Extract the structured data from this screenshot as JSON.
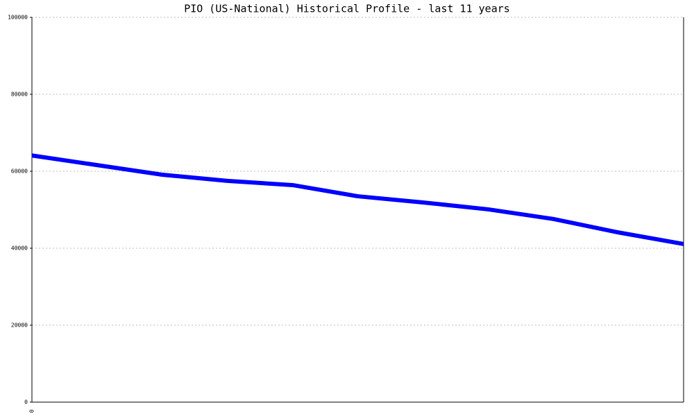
{
  "chart_data": {
    "type": "line",
    "title": "PIO (US-National) Historical Profile - last 11 years",
    "categories": [
      "0",
      null,
      null,
      null,
      null,
      null,
      null,
      null,
      null,
      null,
      null
    ],
    "series": [
      {
        "name": "PIO",
        "color": "#0000ff",
        "values": [
          64100,
          61600,
          59100,
          57500,
          56400,
          53500,
          51900,
          50100,
          47600,
          44100,
          41100
        ]
      }
    ],
    "ylim": [
      0,
      100000
    ],
    "yticks": [
      0,
      20000,
      40000,
      60000,
      80000,
      100000
    ],
    "grid": true
  }
}
